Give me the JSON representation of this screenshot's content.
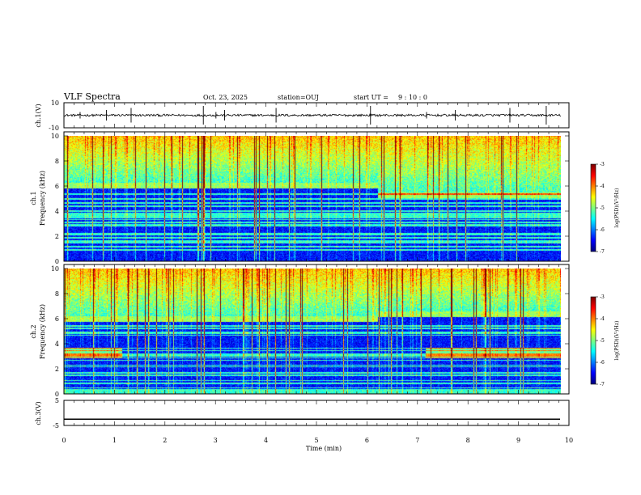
{
  "header": {
    "title": "VLF Spectra",
    "date": "Oct. 23, 2025",
    "station": "station=OUJ",
    "start_label": "start  UT =",
    "start_time": "9 : 10 : 0"
  },
  "colors": {
    "axis": "#000000",
    "spectro_low": "#00007a",
    "spectro_mid": "#00c8c8",
    "spectro_high": "#ff0000",
    "trace": "#000000"
  },
  "chart_data": [
    {
      "type": "line",
      "name": "ch1-waveform",
      "ylabel": "ch.1(V)",
      "ylim": [
        -10,
        10
      ],
      "yticks": [
        "10",
        "-10"
      ],
      "xlim": [
        0,
        10
      ],
      "baseline": 0,
      "spikes_min": [
        0.32,
        0.84,
        1.33,
        2.76,
        3.01,
        3.18,
        4.2,
        6.07,
        7.18,
        7.75,
        8.83,
        9.55
      ]
    },
    {
      "type": "heatmap",
      "name": "ch1-spectrogram",
      "ylabel_top": "ch.1",
      "ylabel": "Frequency (kHz)",
      "ylim": [
        0,
        10
      ],
      "yticks": [
        "0",
        "2",
        "4",
        "6",
        "8",
        "10"
      ],
      "xlim": [
        0,
        9.83
      ],
      "band_edge_khz_before_6_2min": 6.3,
      "band_edge_khz_after_6_2min": 5.5,
      "colorbar": {
        "label": "log(PSD)(V²/Hz)",
        "range": [
          -7,
          -3
        ],
        "ticks": [
          "-3",
          "-4",
          "-5",
          "-6",
          "-7"
        ]
      }
    },
    {
      "type": "heatmap",
      "name": "ch2-spectrogram",
      "ylabel_top": "ch.2",
      "ylabel": "Frequency (kHz)",
      "ylim": [
        0,
        10
      ],
      "yticks": [
        "0",
        "2",
        "4",
        "6",
        "8",
        "10"
      ],
      "xlim": [
        0,
        9.83
      ],
      "band_edge_khz_before_6_2min": 6.2,
      "band_edge_khz_after_6_2min": 6.6,
      "band_3khz_active_min": [
        [
          0,
          1.15
        ],
        [
          7.15,
          9.83
        ]
      ],
      "colorbar": {
        "label": "log(PSD)(V²/Hz)",
        "range": [
          -7,
          -3
        ],
        "ticks": [
          "-3",
          "-4",
          "-5",
          "-6",
          "-7"
        ]
      }
    },
    {
      "type": "line",
      "name": "ch3-trace",
      "ylabel": "ch.3(V)",
      "ylim": [
        -5,
        5
      ],
      "yticks": [
        "5",
        "0",
        "-5"
      ],
      "xlim": [
        0,
        10
      ],
      "value": -2.5
    }
  ],
  "xaxis": {
    "label": "Time  (min)",
    "range": [
      0,
      10
    ],
    "ticks": [
      "0",
      "1",
      "2",
      "3",
      "4",
      "5",
      "6",
      "7",
      "8",
      "9",
      "10"
    ]
  }
}
